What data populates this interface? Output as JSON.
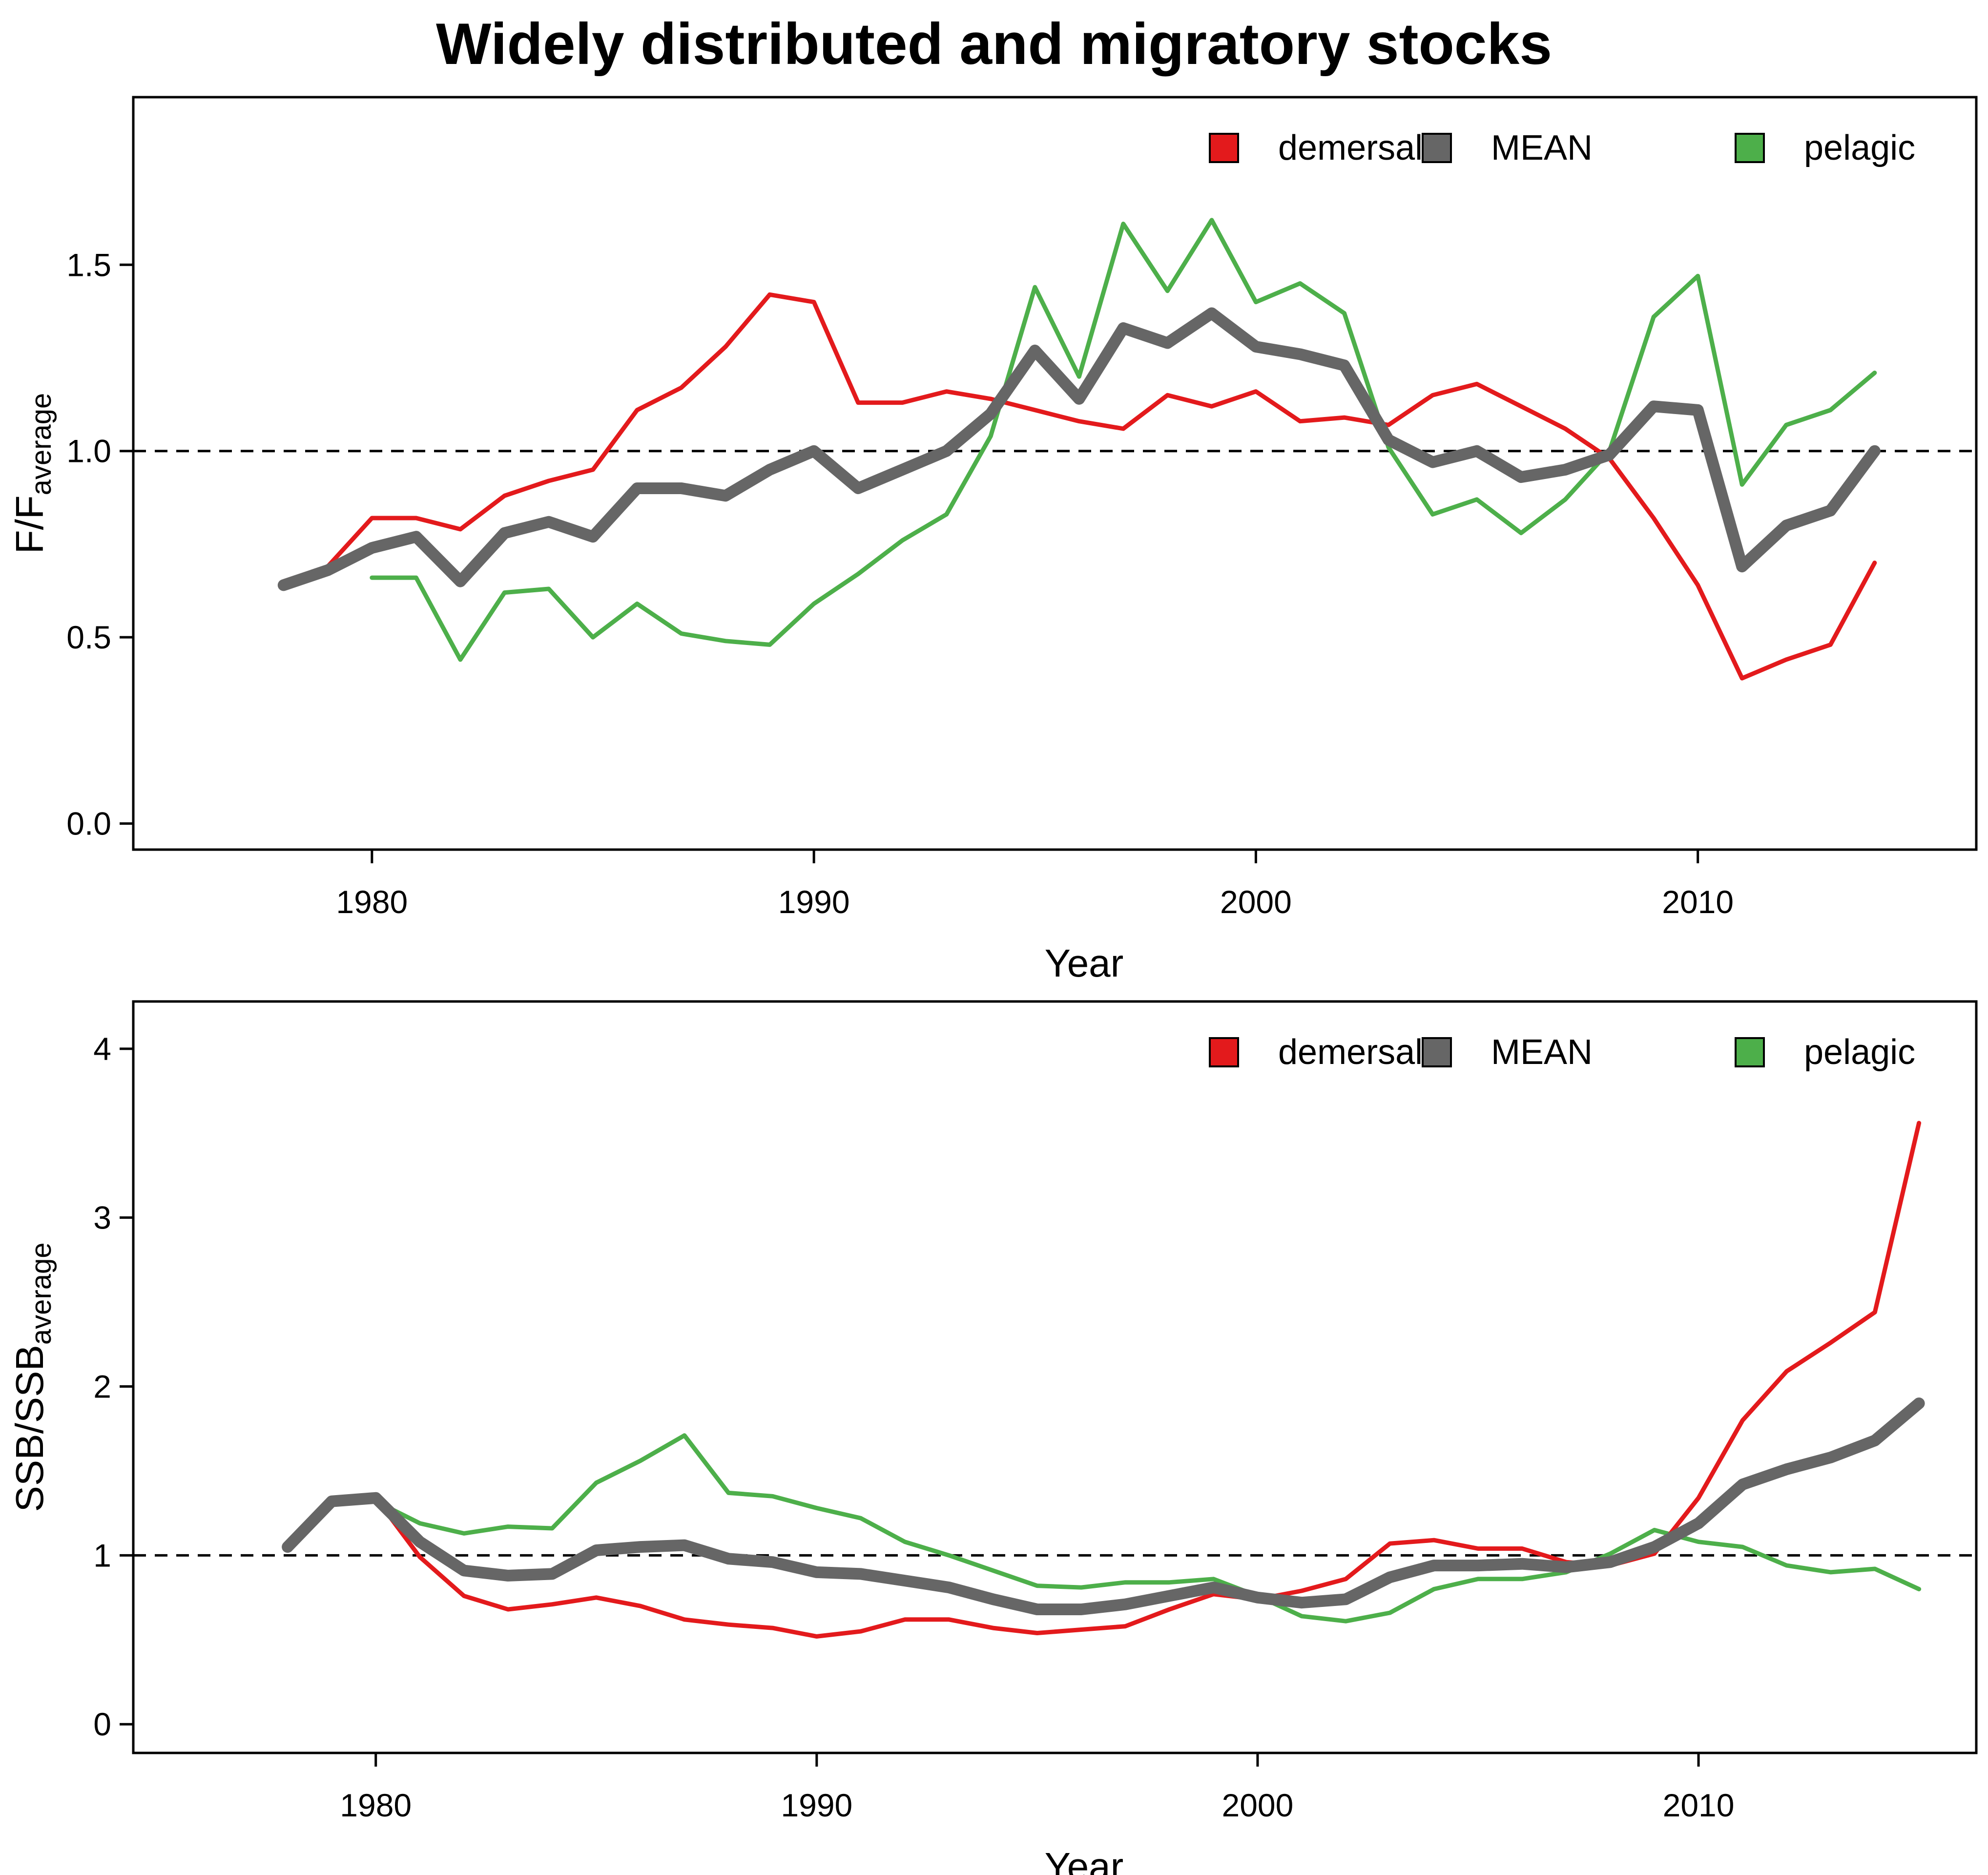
{
  "title": "Widely distributed and migratory stocks",
  "colors": {
    "demersal": "#e31a1c",
    "MEAN": "#666666",
    "pelagic": "#4daf4a",
    "reference": "#000000"
  },
  "chart_data": [
    {
      "type": "line",
      "xlabel": "Year",
      "ylabel": {
        "main": "F/F",
        "sub": "average"
      },
      "xlim": [
        1974.6,
        2016.3
      ],
      "ylim": [
        -0.07,
        1.95
      ],
      "xticks": [
        1980,
        1990,
        2000,
        2010
      ],
      "yticks": [
        0.0,
        0.5,
        1.0,
        1.5
      ],
      "ytick_labels": [
        "0.0",
        "0.5",
        "1.0",
        "1.5"
      ],
      "reference_line": 1.0,
      "legend": [
        "demersal",
        "MEAN",
        "pelagic"
      ],
      "legend_position": "top-right",
      "series": [
        {
          "name": "demersal",
          "x_start": 1978,
          "values": [
            0.65,
            0.69,
            0.82,
            0.82,
            0.79,
            0.88,
            0.92,
            0.95,
            1.11,
            1.17,
            1.28,
            1.42,
            1.4,
            1.13,
            1.13,
            1.16,
            1.14,
            1.11,
            1.08,
            1.06,
            1.15,
            1.12,
            1.16,
            1.08,
            1.09,
            1.07,
            1.15,
            1.18,
            1.12,
            1.06,
            0.98,
            0.82,
            0.64,
            0.39,
            0.44,
            0.48,
            0.7
          ]
        },
        {
          "name": "MEAN",
          "x_start": 1978,
          "values": [
            0.64,
            0.68,
            0.74,
            0.77,
            0.65,
            0.78,
            0.81,
            0.77,
            0.9,
            0.9,
            0.88,
            0.95,
            1.0,
            0.9,
            0.95,
            1.0,
            1.1,
            1.27,
            1.14,
            1.33,
            1.29,
            1.37,
            1.28,
            1.26,
            1.23,
            1.03,
            0.97,
            1.0,
            0.93,
            0.95,
            0.99,
            1.12,
            1.11,
            0.69,
            0.8,
            0.84,
            1.0
          ]
        },
        {
          "name": "pelagic",
          "x_start": 1980,
          "values": [
            0.66,
            0.66,
            0.44,
            0.62,
            0.63,
            0.5,
            0.59,
            0.51,
            0.49,
            0.48,
            0.59,
            0.67,
            0.76,
            0.83,
            1.04,
            1.44,
            1.2,
            1.61,
            1.43,
            1.62,
            1.4,
            1.45,
            1.37,
            1.01,
            0.83,
            0.87,
            0.78,
            0.87,
            1.0,
            1.36,
            1.47,
            0.91,
            1.07,
            1.11,
            1.21
          ]
        }
      ]
    },
    {
      "type": "line",
      "xlabel": "Year",
      "ylabel": {
        "main": "SSB/SSB",
        "sub": "average"
      },
      "xlim": [
        1974.5,
        2016.3
      ],
      "ylim": [
        -0.17,
        4.28
      ],
      "xticks": [
        1980,
        1990,
        2000,
        2010
      ],
      "yticks": [
        0,
        1,
        2,
        3,
        4
      ],
      "ytick_labels": [
        "0",
        "1",
        "2",
        "3",
        "4"
      ],
      "reference_line": 1.0,
      "legend": [
        "demersal",
        "MEAN",
        "pelagic"
      ],
      "legend_position": "top-right",
      "series": [
        {
          "name": "demersal",
          "x_start": 1978,
          "values": [
            1.04,
            1.32,
            1.34,
            0.99,
            0.76,
            0.68,
            0.71,
            0.75,
            0.7,
            0.62,
            0.59,
            0.57,
            0.52,
            0.55,
            0.62,
            0.62,
            0.57,
            0.54,
            0.56,
            0.58,
            0.68,
            0.77,
            0.74,
            0.79,
            0.86,
            1.07,
            1.09,
            1.04,
            1.04,
            0.96,
            0.94,
            1.01,
            1.34,
            1.8,
            2.09,
            2.26,
            2.44,
            3.56
          ]
        },
        {
          "name": "MEAN",
          "x_start": 1978,
          "values": [
            1.05,
            1.32,
            1.34,
            1.08,
            0.91,
            0.88,
            0.89,
            1.03,
            1.05,
            1.06,
            0.98,
            0.96,
            0.9,
            0.89,
            0.85,
            0.81,
            0.74,
            0.68,
            0.68,
            0.71,
            0.76,
            0.81,
            0.75,
            0.72,
            0.74,
            0.87,
            0.94,
            0.94,
            0.95,
            0.93,
            0.96,
            1.05,
            1.19,
            1.42,
            1.51,
            1.58,
            1.68,
            1.9
          ]
        },
        {
          "name": "pelagic",
          "x_start": 1980,
          "values": [
            1.32,
            1.19,
            1.13,
            1.17,
            1.16,
            1.43,
            1.56,
            1.71,
            1.37,
            1.35,
            1.28,
            1.22,
            1.08,
            1.0,
            0.91,
            0.82,
            0.81,
            0.84,
            0.84,
            0.86,
            0.76,
            0.64,
            0.61,
            0.66,
            0.8,
            0.86,
            0.86,
            0.9,
            1.01,
            1.15,
            1.08,
            1.05,
            0.94,
            0.9,
            0.92,
            0.8
          ]
        }
      ]
    }
  ]
}
